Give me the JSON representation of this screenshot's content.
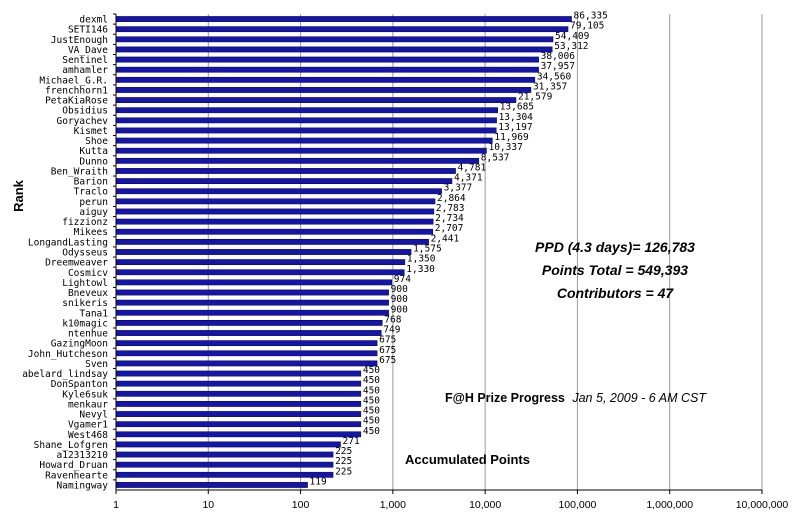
{
  "chart_data": {
    "type": "bar",
    "orientation": "horizontal",
    "x_scale": "log",
    "xlim": [
      1,
      10000000
    ],
    "x_ticks": [
      "1",
      "10",
      "100",
      "1,000",
      "10,000",
      "100,000",
      "1,000,000",
      "10,000,000"
    ],
    "ylabel": "Rank",
    "xlabel": "Accumulated Points",
    "grid": "vertical",
    "bar_color": "#1515a8",
    "categories": [
      "dexml",
      "SETI146",
      "JustEnough",
      "VA_Dave",
      "Sentinel",
      "amhamler",
      "Michael_G.R.",
      "frenchhorn1",
      "PetaKiaRose",
      "Obsidius",
      "Goryachev",
      "Kismet",
      "Shoe",
      "Kutta",
      "Dunno",
      "Ben_Wraith",
      "Barion",
      "Traclo",
      "perun",
      "aiguy",
      "fizzionz",
      "Mikees",
      "LongandLasting",
      "Odysseus",
      "Dreemweaver",
      "Cosmicv",
      "Lightowl",
      "Bneveux",
      "snikeris",
      "Tana1",
      "k10magic",
      "ntenhue",
      "GazingMoon",
      "John_Hutcheson",
      "Sven",
      "abelard_lindsay",
      "DonSpanton",
      "Kyle6suk",
      "menkaur",
      "Nevyl",
      "Vgamer1",
      "West468",
      "Shane_Lofgren",
      "a12313210",
      "Howard_Druan",
      "Ravenhearte",
      "Namingway"
    ],
    "values": [
      86335,
      79105,
      54409,
      53312,
      38006,
      37957,
      34560,
      31357,
      21579,
      13685,
      13304,
      13197,
      11969,
      10337,
      8537,
      4781,
      4371,
      3377,
      2864,
      2783,
      2734,
      2707,
      2441,
      1575,
      1350,
      1330,
      974,
      900,
      900,
      900,
      768,
      749,
      675,
      675,
      675,
      450,
      450,
      450,
      450,
      450,
      450,
      450,
      271,
      225,
      225,
      225,
      119
    ],
    "value_labels": [
      "86,335",
      "79,105",
      "54,409",
      "53,312",
      "38,006",
      "37,957",
      "34,560",
      "31,357",
      "21,579",
      "13,685",
      "13,304",
      "13,197",
      "11,969",
      "10,337",
      "8,537",
      "4,781",
      "4,371",
      "3,377",
      "2,864",
      "2,783",
      "2,734",
      "2,707",
      "2,441",
      "1,575",
      "1,350",
      "1,330",
      "974",
      "900",
      "900",
      "900",
      "768",
      "749",
      "675",
      "675",
      "675",
      "450",
      "450",
      "450",
      "450",
      "450",
      "450",
      "450",
      "271",
      "225",
      "225",
      "225",
      "119"
    ]
  },
  "annotations": {
    "ppd": "PPD (4.3 days)= 126,783",
    "points_total": "Points Total = 549,393",
    "contributors": "Contributors = 47",
    "caption_bold": "F@H Prize Progress",
    "caption_italic": "Jan 5, 2009 - 6 AM CST"
  }
}
